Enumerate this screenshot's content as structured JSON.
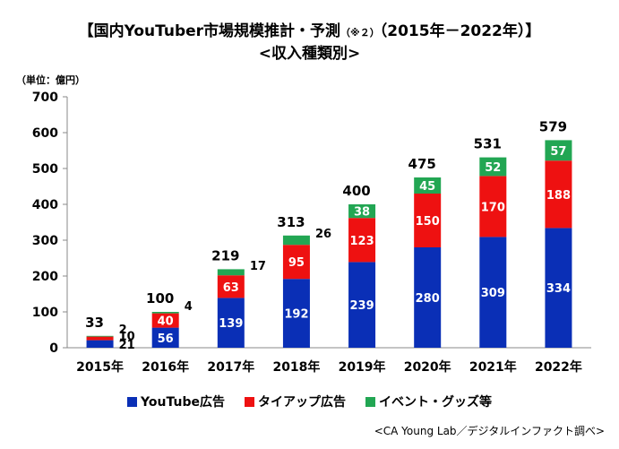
{
  "header": {
    "title_main": "【国内YouTuber市場規模推計・予測",
    "title_note": "（※２）",
    "title_period": "（2015年－2022年）】",
    "subtitle": "<収入種類別>"
  },
  "unit_label": "（単位：億円）",
  "source_note": "<CA Young Lab／デジタルインファクト調べ>",
  "colors": {
    "youtube_ads": "#0a2fb6",
    "tieup_ads": "#ee1111",
    "events_goods": "#22a653"
  },
  "chart_data": {
    "type": "bar",
    "stacked": true,
    "categories": [
      "2015年",
      "2016年",
      "2017年",
      "2018年",
      "2019年",
      "2020年",
      "2021年",
      "2022年"
    ],
    "series": [
      {
        "name": "YouTube広告",
        "values": [
          21,
          56,
          139,
          192,
          239,
          280,
          309,
          334
        ]
      },
      {
        "name": "タイアップ広告",
        "values": [
          10,
          40,
          63,
          95,
          123,
          150,
          170,
          188
        ]
      },
      {
        "name": "イベント・グッズ等",
        "values": [
          2,
          4,
          17,
          26,
          38,
          45,
          52,
          57
        ]
      }
    ],
    "totals": [
      33,
      100,
      219,
      313,
      400,
      475,
      531,
      579
    ],
    "ylim": [
      0,
      700
    ],
    "yticks": [
      0,
      100,
      200,
      300,
      400,
      500,
      600,
      700
    ],
    "legend_position": "bottom",
    "grid": false
  }
}
